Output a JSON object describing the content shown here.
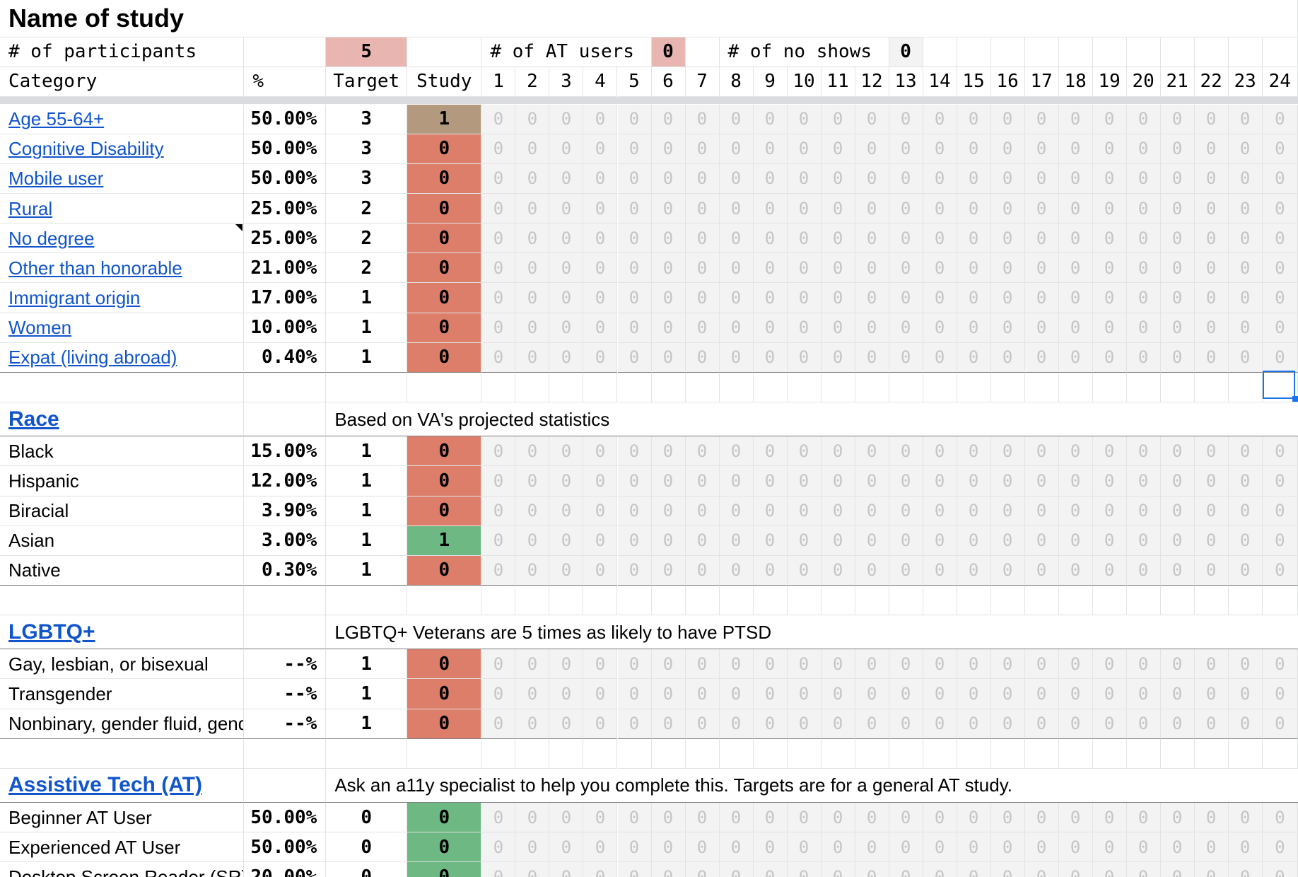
{
  "app": "Name of study",
  "colors": {
    "accent": "#1a73e8",
    "link": "#1155cc",
    "missing": "#dd7e6b",
    "met": "#6db883",
    "partial": "#b39a7f",
    "target_fill": "#e8b5b0",
    "zero_cell": "#f3f3f3"
  },
  "summary": {
    "participants_label": "# of participants",
    "participants_value": "5",
    "at_users_label": "# of AT users",
    "at_users_value": "0",
    "no_shows_label": "# of no shows",
    "no_shows_value": "0"
  },
  "header": {
    "category": "Category",
    "pct": "%",
    "target": "Target",
    "study": "Study",
    "sessions": [
      "1",
      "2",
      "3",
      "4",
      "5",
      "6",
      "7",
      "8",
      "9",
      "10",
      "11",
      "12",
      "13",
      "14",
      "15",
      "16",
      "17",
      "18",
      "19",
      "20",
      "21",
      "22",
      "23",
      "24"
    ]
  },
  "zero_glyph": "0",
  "sections": [
    {
      "title": "",
      "note": "",
      "rows": [
        {
          "label": "Age 55-64+",
          "link": true,
          "pct": "50.00%",
          "target": "3",
          "study": "1",
          "status": "partial"
        },
        {
          "label": "Cognitive Disability",
          "link": true,
          "pct": "50.00%",
          "target": "3",
          "study": "0",
          "status": "missing"
        },
        {
          "label": "Mobile user",
          "link": true,
          "pct": "50.00%",
          "target": "3",
          "study": "0",
          "status": "missing"
        },
        {
          "label": "Rural",
          "link": true,
          "pct": "25.00%",
          "target": "2",
          "study": "0",
          "status": "missing"
        },
        {
          "label": "No degree",
          "link": true,
          "pct": "25.00%",
          "target": "2",
          "study": "0",
          "status": "missing"
        },
        {
          "label": "Other than honorable",
          "link": true,
          "pct": "21.00%",
          "target": "2",
          "study": "0",
          "status": "missing"
        },
        {
          "label": "Immigrant origin",
          "link": true,
          "pct": "17.00%",
          "target": "1",
          "study": "0",
          "status": "missing"
        },
        {
          "label": "Women",
          "link": true,
          "pct": "10.00%",
          "target": "1",
          "study": "0",
          "status": "missing"
        },
        {
          "label": "Expat (living abroad)",
          "link": true,
          "pct": "0.40%",
          "target": "1",
          "study": "0",
          "status": "missing"
        }
      ]
    },
    {
      "title": "Race",
      "note": "Based on VA's projected statistics",
      "rows": [
        {
          "label": "Black",
          "link": false,
          "pct": "15.00%",
          "target": "1",
          "study": "0",
          "status": "missing"
        },
        {
          "label": "Hispanic",
          "link": false,
          "pct": "12.00%",
          "target": "1",
          "study": "0",
          "status": "missing"
        },
        {
          "label": "Biracial",
          "link": false,
          "pct": "3.90%",
          "target": "1",
          "study": "0",
          "status": "missing"
        },
        {
          "label": "Asian",
          "link": false,
          "pct": "3.00%",
          "target": "1",
          "study": "1",
          "status": "met"
        },
        {
          "label": "Native",
          "link": false,
          "pct": "0.30%",
          "target": "1",
          "study": "0",
          "status": "missing"
        }
      ]
    },
    {
      "title": "LGBTQ+",
      "note": "LGBTQ+ Veterans are 5 times as likely to have PTSD",
      "rows": [
        {
          "label": "Gay, lesbian, or bisexual",
          "link": false,
          "pct": "--%",
          "target": "1",
          "study": "0",
          "status": "missing"
        },
        {
          "label": "Transgender",
          "link": false,
          "pct": "--%",
          "target": "1",
          "study": "0",
          "status": "missing"
        },
        {
          "label": "Nonbinary, gender fluid, gender queer",
          "link": false,
          "pct": "--%",
          "target": "1",
          "study": "0",
          "status": "missing"
        }
      ]
    },
    {
      "title": "Assistive Tech (AT)",
      "note": "Ask an a11y specialist to help you complete this. Targets are for a general AT study.",
      "rows": [
        {
          "label": "Beginner AT User",
          "link": false,
          "pct": "50.00%",
          "target": "0",
          "study": "0",
          "status": "met"
        },
        {
          "label": "Experienced AT User",
          "link": false,
          "pct": "50.00%",
          "target": "0",
          "study": "0",
          "status": "met"
        },
        {
          "label": "Desktop Screen Reader (SR)",
          "link": false,
          "pct": "20.00%",
          "target": "0",
          "study": "0",
          "status": "met"
        }
      ]
    }
  ]
}
